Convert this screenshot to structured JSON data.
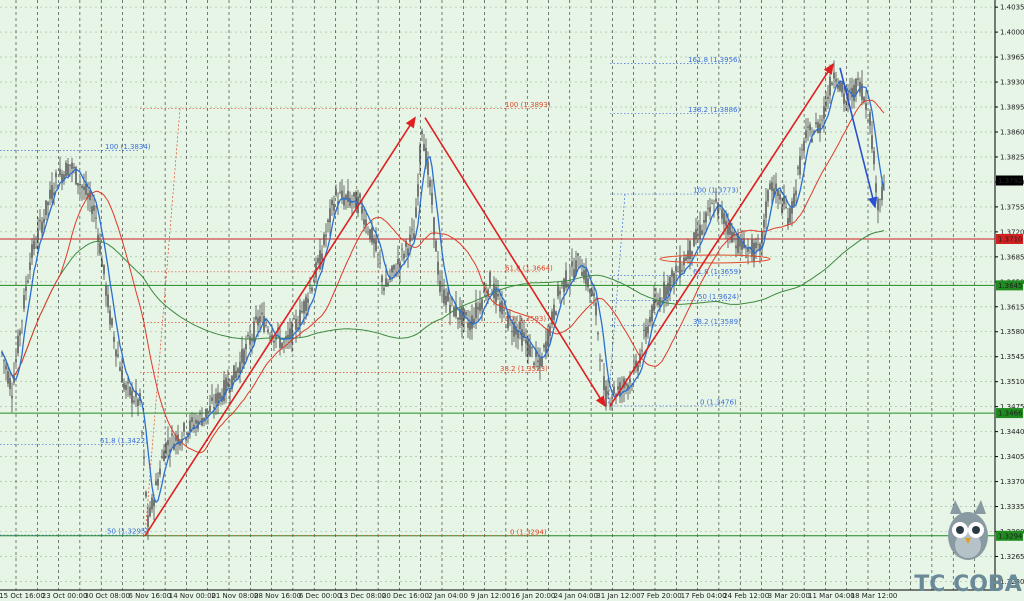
{
  "chart_data": {
    "type": "candlestick",
    "y_axis": {
      "ticks": [
        "1.4035",
        "1.4000",
        "1.3965",
        "1.3930",
        "1.3895",
        "1.3860",
        "1.3825",
        "1.3790",
        "1.3755",
        "1.3720",
        "1.3685",
        "1.3650",
        "1.3615",
        "1.3580",
        "1.3545",
        "1.3510",
        "1.3475",
        "1.3440",
        "1.3405",
        "1.3370",
        "1.3335",
        "1.3300",
        "1.3265",
        "1.3230"
      ],
      "ylim": [
        1.3218,
        1.4045
      ]
    },
    "x_axis": {
      "ticks": [
        "15 Oct 16:00",
        "23 Oct 00:00",
        "30 Oct 08:00",
        "6 Nov 16:00",
        "14 Nov 00:00",
        "21 Nov 08:00",
        "28 Nov 16:00",
        "6 Dec 00:00",
        "13 Dec 08:00",
        "20 Dec 16:00",
        "2 Jan 04:00",
        "9 Jan 12:00",
        "16 Jan 20:00",
        "24 Jan 04:00",
        "31 Jan 12:00",
        "7 Feb 20:00",
        "17 Feb 04:00",
        "24 Feb 12:00",
        "3 Mar 20:00",
        "11 Mar 04:00",
        "18 Mar 12:00"
      ]
    },
    "price_markers": [
      {
        "value": "1.3792",
        "color": "#000000",
        "text_color": "#ffffff"
      },
      {
        "value": "1.3710",
        "color": "#d02020",
        "text_color": "#ffffff"
      },
      {
        "value": "1.3645",
        "color": "#208a20",
        "text_color": "#ffffff"
      },
      {
        "value": "1.3466",
        "color": "#208a20",
        "text_color": "#ffffff"
      },
      {
        "value": "1.3294",
        "color": "#208a20",
        "text_color": "#ffffff"
      }
    ],
    "horizontal_lines": [
      {
        "price": 1.371,
        "color": "#d02020"
      },
      {
        "price": 1.3645,
        "color": "#208a20"
      },
      {
        "price": 1.3466,
        "color": "#208a20"
      },
      {
        "price": 1.3294,
        "color": "#208a20"
      }
    ],
    "fib_labels": [
      {
        "text": "100 (1.3834)",
        "price": 1.3834,
        "color": "#3a6fd8"
      },
      {
        "text": "61.8 (1.3422)",
        "price": 1.3422,
        "color": "#3a6fd8"
      },
      {
        "text": "50 (1.3295)",
        "price": 1.3295,
        "color": "#3a6fd8"
      },
      {
        "text": "100 (1.3893)",
        "price": 1.3893,
        "color": "#e04a2a"
      },
      {
        "text": "61.8 (1.3664)",
        "price": 1.3664,
        "color": "#e04a2a"
      },
      {
        "text": "50 (1.3593)",
        "price": 1.3593,
        "color": "#e04a2a"
      },
      {
        "text": "38.2 (1.3523)",
        "price": 1.3523,
        "color": "#e04a2a"
      },
      {
        "text": "0 (1.3294)",
        "price": 1.3294,
        "color": "#e04a2a"
      },
      {
        "text": "161.8 (1.3956)",
        "price": 1.3956,
        "color": "#3a6fd8"
      },
      {
        "text": "138.2 (1.3886)",
        "price": 1.3886,
        "color": "#3a6fd8"
      },
      {
        "text": "100 (1.3773)",
        "price": 1.3773,
        "color": "#3a6fd8"
      },
      {
        "text": "61.8 (1.3659)",
        "price": 1.3659,
        "color": "#3a6fd8"
      },
      {
        "text": "50 (1.3624)",
        "price": 1.3624,
        "color": "#3a6fd8"
      },
      {
        "text": "38.2 (1.3589)",
        "price": 1.3589,
        "color": "#3a6fd8"
      },
      {
        "text": "0 (1.3476)",
        "price": 1.3476,
        "color": "#3a6fd8"
      }
    ],
    "grid": true,
    "colors": {
      "background": "#e6f5e6",
      "candles": "#4a4a4a",
      "ma_fast": "#2a6fd0",
      "ma_mid": "#e03a2a",
      "ma_slow": "#3f8a3f",
      "trend_arrows": "#e02020",
      "down_arrow": "#2a4fd0"
    }
  },
  "logo": {
    "text": "TC COBA",
    "icon": "owl-icon"
  }
}
